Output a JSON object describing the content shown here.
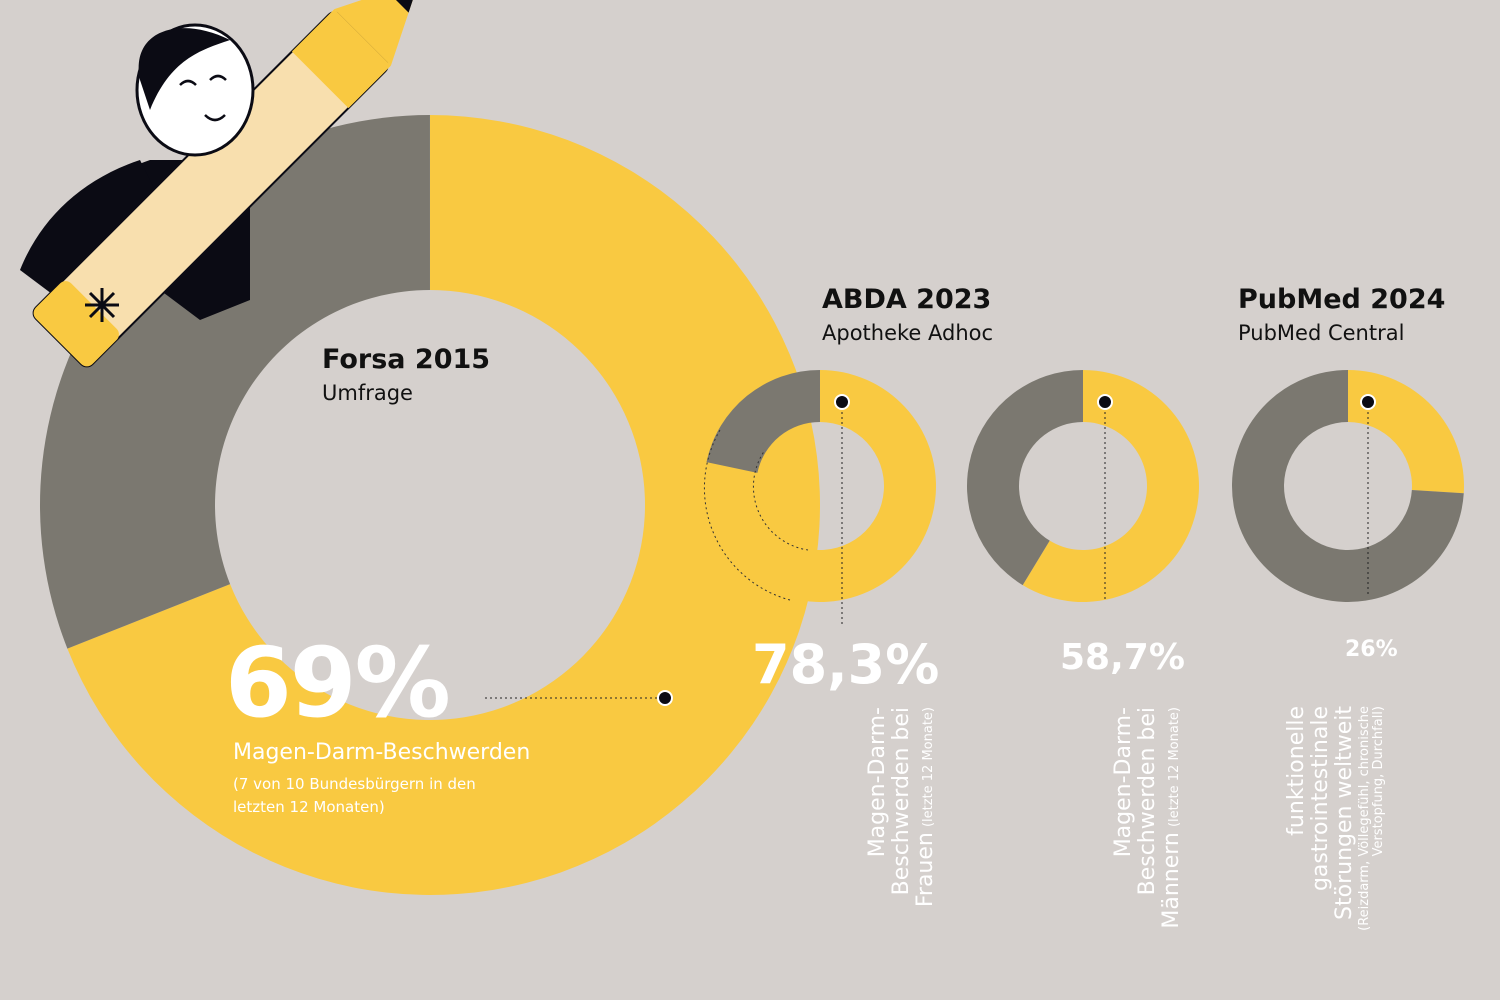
{
  "colors": {
    "background": "#d5d0cd",
    "highlight": "#f9c941",
    "rest": "#7b7870",
    "text": "#ffffff"
  },
  "chart_data": [
    {
      "type": "pie",
      "variant": "donut",
      "title": "Forsa 2015",
      "subtitle": "Umfrage",
      "value": 69,
      "value_label": "69%",
      "label": "Magen-Darm-Beschwerden",
      "note": "(7 von 10 Bundesbürgern in den letzten 12 Monaten)"
    },
    {
      "type": "pie",
      "variant": "donut",
      "title": "ABDA 2023",
      "subtitle": "Apotheke Adhoc",
      "value": 78.3,
      "value_label": "78,3%",
      "label": "Magen-Darm-Beschwerden bei Frauen",
      "note": "(letzte 12 Monate)"
    },
    {
      "type": "pie",
      "variant": "donut",
      "value": 58.7,
      "value_label": "58,7%",
      "label": "Magen-Darm-Beschwerden bei Männern",
      "note": "(letzte 12 Monate)"
    },
    {
      "type": "pie",
      "variant": "donut",
      "title": "PubMed 2024",
      "subtitle": "PubMed Central",
      "value": 26,
      "value_label": "26%",
      "label": "funktionelle gastrointestinale Störungen weltweit",
      "note": "(Reizdarm, Völlegefühl, chronische Verstopfung, Durchfall)"
    }
  ]
}
